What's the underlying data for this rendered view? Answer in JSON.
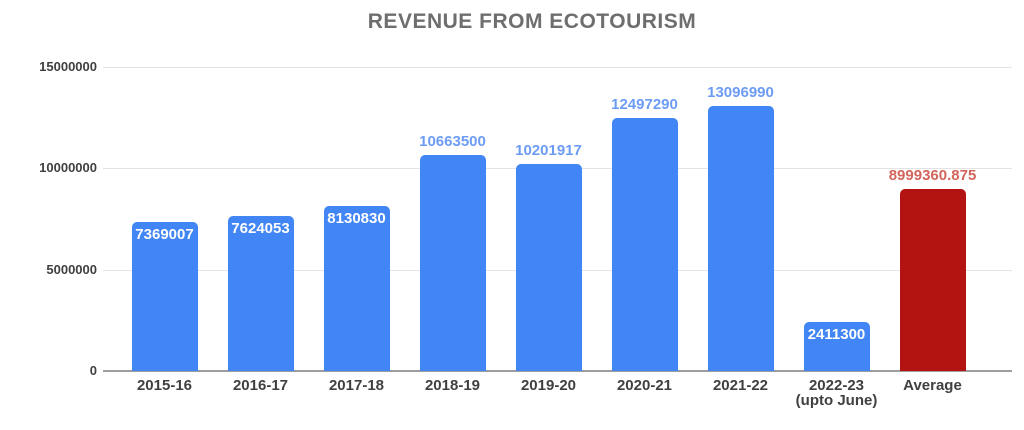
{
  "title": "REVENUE FROM ECOTOURISM",
  "colors": {
    "bar_blue": "#4285f4",
    "bar_red": "#b31412",
    "annotation_inside": "#ffffff",
    "annotation_blue": "#6d9cf5",
    "annotation_red": "#d2655c",
    "gridline": "#e3e3e3",
    "baseline": "#9e9e9e",
    "axis_text": "#404040",
    "title_text": "#6e6e6e",
    "background": "#ffffff"
  },
  "chart_data": {
    "type": "bar",
    "title": "REVENUE FROM ECOTOURISM",
    "categories": [
      "2015-16",
      "2016-17",
      "2017-18",
      "2018-19",
      "2019-20",
      "2020-21",
      "2021-22",
      "2022-23\n(upto June)",
      "Average"
    ],
    "values": [
      7369007,
      7624053,
      8130830,
      10663500,
      10201917,
      12497290,
      13096990,
      2411300,
      8999360.875
    ],
    "annotations": [
      "7369007",
      "7624053",
      "8130830",
      "10663500",
      "10201917",
      "12497290",
      "13096990",
      "2411300",
      "8999360.875"
    ],
    "annotation_placement": [
      "inside",
      "inside",
      "inside",
      "above",
      "above",
      "above",
      "above",
      "inside",
      "above"
    ],
    "bar_colors": [
      "blue",
      "blue",
      "blue",
      "blue",
      "blue",
      "blue",
      "blue",
      "blue",
      "red"
    ],
    "xlabel": "",
    "ylabel": "",
    "ylim": [
      0,
      15000000
    ],
    "yticks": [
      0,
      5000000,
      10000000,
      15000000
    ],
    "ytick_labels": [
      "0",
      "5000000",
      "10000000",
      "15000000"
    ],
    "grid": true,
    "legend": "none"
  }
}
